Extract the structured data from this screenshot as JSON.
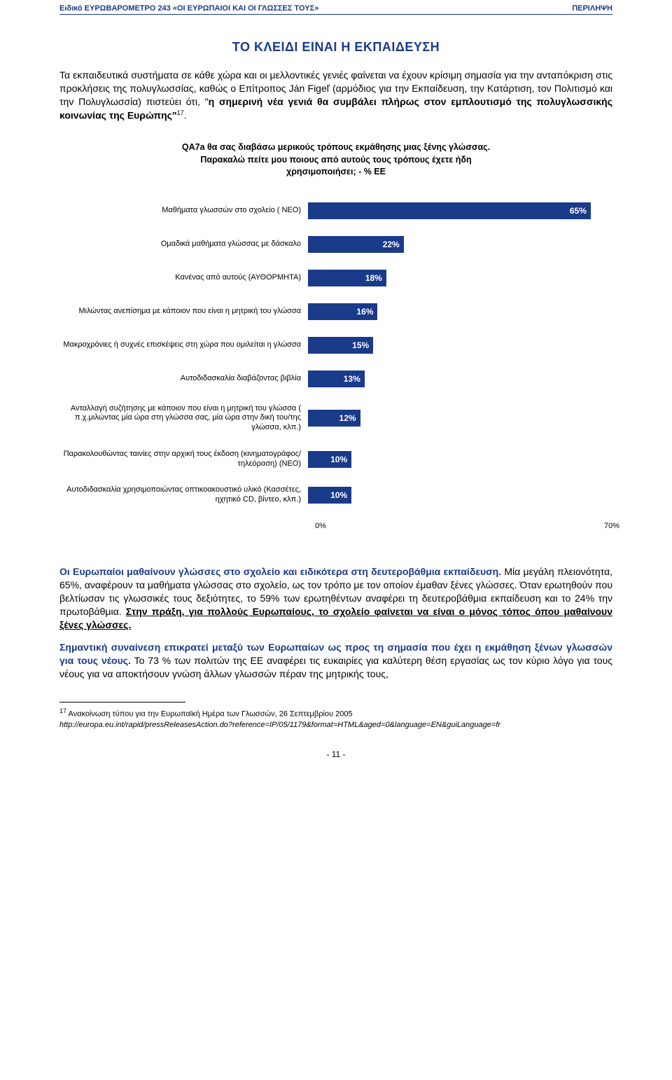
{
  "header": {
    "left": "Ειδικό ΕΥΡΩΒΑΡΟΜΕΤΡΟ 243 «ΟΙ ΕΥΡΩΠΑΙΟΙ ΚΑΙ ΟΙ ΓΛΩΣΣΕΣ ΤΟΥΣ»",
    "right": "ΠΕΡΙΛΗΨΗ"
  },
  "title": "ΤΟ ΚΛΕΙΔΙ ΕΙΝΑΙ Η ΕΚΠΑΙΔΕΥΣΗ",
  "intro": {
    "p1a": "Τα εκπαιδευτικά συστήματα σε κάθε χώρα και οι μελλοντικές γενιές φαίνεται να έχουν κρίσιμη σημασία για την ανταπόκριση στις προκλήσεις της πολυγλωσσίας, καθώς ο Επίτροπος Ján Figeľ (αρμόδιος για την Εκπαίδευση, την Κατάρτιση, τον Πολιτισμό και την Πολυγλωσσία) πιστεύει ότι, \"",
    "p1b": "η σημερινή νέα γενιά θα συμβάλει πλήρως στον εμπλουτισμό της πολυγλωσσικής κοινωνίας της Ευρώπης\"",
    "p1c": "17",
    "p1d": "."
  },
  "chart": {
    "title_l1": "QA7a θα σας διαβάσω μερικούς τρόπους εκμάθησης μιας ξένης γλώσσας.",
    "title_l2": "Παρακαλώ πείτε μου ποιους από αυτούς τους τρόπους έχετε ήδη",
    "title_l3": "χρησιμοποιήσει; - % ΕΕ",
    "type": "bar-horizontal",
    "bar_color": "#1a3a8a",
    "label_color": "#000000",
    "value_color": "#ffffff",
    "background": "#ffffff",
    "xlim": [
      0,
      70
    ],
    "xtick_min": "0%",
    "xtick_max": "70%",
    "label_fontsize": 11,
    "value_fontsize": 12,
    "items": [
      {
        "label": "Μαθήματα γλωσσών στο σχολείο ( ΝΕΟ)",
        "value": 65,
        "display": "65%"
      },
      {
        "label": "Ομαδικά μαθήματα γλώσσας με δάσκαλο",
        "value": 22,
        "display": "22%"
      },
      {
        "label": "Κανένας από αυτούς (ΑΥΘΟΡΜΗΤΑ)",
        "value": 18,
        "display": "18%"
      },
      {
        "label": "Μιλώντας ανεπίσημα με κάποιον που είναι η μητρική του γλώσσα",
        "value": 16,
        "display": "16%"
      },
      {
        "label": "Μακροχρόνιες ή συχνές επισκέψεις στη χώρα που ομιλείται η γλώσσα",
        "value": 15,
        "display": "15%"
      },
      {
        "label": "Αυτοδιδασκαλία διαβάζοντας βιβλία",
        "value": 13,
        "display": "13%"
      },
      {
        "label": "Ανταλλαγή συζήτησης με κάποιον που είναι η μητρική του γλώσσα ( π.χ.μιλώντας μία ώρα στη γλώσσα σας, μία ώρα στην δική του/της γλώσσα, κλπ.)",
        "value": 12,
        "display": "12%"
      },
      {
        "label": "Παρακολουθώντας ταινίες στην αρχική τους έκδοση (κινηματογράφος/τηλεόραση) (ΝΕΟ)",
        "value": 10,
        "display": "10%"
      },
      {
        "label": "Αυτοδιδασκαλία χρησιμοποιώντας οπτικοακουστικό υλικό (Κασσέτες, ηχητικό CD, βίντεο, κλπ.)",
        "value": 10,
        "display": "10%"
      }
    ]
  },
  "body": {
    "p2a": "Οι Ευρωπαίοι μαθαίνουν γλώσσες στο σχολείο και ειδικότερα στη δευτεροβάθμια εκπαίδευση.",
    "p2b": " Μία μεγάλη πλειονότητα, 65%, αναφέρουν τα μαθήματα γλώσσας στο σχολείο, ως τον τρόπο με τον οποίον έμαθαν ξένες γλώσσες. Όταν ερωτηθούν που βελτίωσαν τις γλωσσικές τους δεξιότητες, το 59% των ερωτηθέντων αναφέρει τη δευτεροβάθμια εκπαίδευση και το 24% την πρωτοβάθμια. ",
    "p2c": "Στην πράξη, για πολλούς Ευρωπαίους, το σχολείο φαίνεται να είναι ο μόνος τόπος όπου μαθαίνουν ξένες γλώσσες.",
    "p3a": "Σημαντική συναίνεση επικρατεί μεταξύ των Ευρωπαίων ως προς τη σημασία που έχει η εκμάθηση ξένων γλωσσών για τους νέους.",
    "p3b": " Το 73 % των πολιτών της ΕΕ αναφέρει  τις ευκαιρίες για καλύτερη θέση εργασίας ως τον κύριο λόγο για τους νέους για να αποκτήσουν γνώση άλλων γλωσσών πέραν της μητρικής τους,"
  },
  "footnote": {
    "marker": "17",
    "text": " Ανακοίνωση τύπου για την Ευρωπαϊκή Ημέρα των Γλωσσών, 26 Σεπτεμβρίου 2005",
    "link": "http://europa.eu.int/rapid/pressReleasesAction.do?reference=IP/05/1179&format=HTML&aged=0&language=EN&guiLanguage=fr"
  },
  "page_num": "- 11 -"
}
